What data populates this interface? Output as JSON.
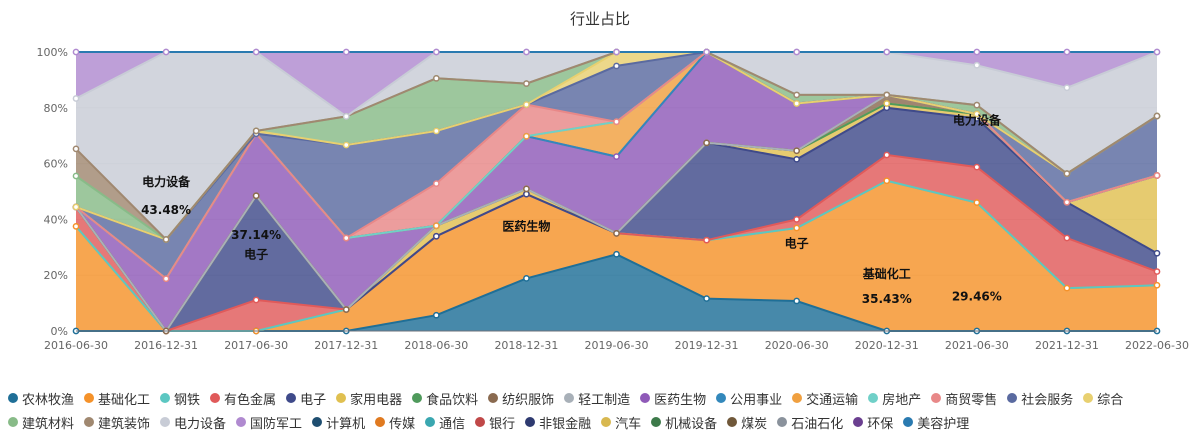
{
  "chart_data": {
    "type": "area",
    "stacked": true,
    "percent": true,
    "title": "行业占比",
    "x": [
      "2016-06-30",
      "2016-12-31",
      "2017-06-30",
      "2017-12-31",
      "2018-06-30",
      "2018-12-31",
      "2019-06-30",
      "2019-12-31",
      "2020-06-30",
      "2020-12-31",
      "2021-06-30",
      "2021-12-31",
      "2022-06-30"
    ],
    "yticks": [
      "0%",
      "20%",
      "40%",
      "60%",
      "80%",
      "100%"
    ],
    "ylim": [
      0,
      100
    ],
    "legend_position": "bottom",
    "series": [
      {
        "name": "农林牧渔",
        "color": "#1f6f97",
        "values": [
          0,
          0,
          0,
          0,
          3,
          10,
          11,
          5,
          7,
          0,
          0,
          0,
          0
        ]
      },
      {
        "name": "基础化工",
        "color": "#f5922a",
        "values": [
          27,
          0,
          0,
          3,
          15,
          16,
          3,
          9,
          17,
          35,
          29,
          6,
          10
        ]
      },
      {
        "name": "钢铁",
        "color": "#5cc7c2",
        "values": [
          0,
          0,
          0,
          0,
          0,
          0,
          0,
          0,
          0,
          0,
          0,
          0,
          0
        ]
      },
      {
        "name": "有色金属",
        "color": "#e05a5a",
        "values": [
          5,
          0,
          11,
          0,
          0,
          0,
          0,
          0,
          2,
          6,
          8,
          7,
          3
        ]
      },
      {
        "name": "电子",
        "color": "#3f4a8a",
        "values": [
          0,
          0,
          37,
          0,
          0,
          0,
          0,
          15,
          14,
          11,
          11,
          5,
          4
        ]
      },
      {
        "name": "家用电器",
        "color": "#e0c050",
        "values": [
          0,
          0,
          0,
          0,
          2,
          1,
          0,
          0,
          2,
          1,
          1,
          0,
          17
        ]
      },
      {
        "name": "食品饮料",
        "color": "#4f9a5c",
        "values": [
          0,
          0,
          0,
          0,
          0,
          0,
          0,
          0,
          0,
          0,
          0,
          0,
          0
        ]
      },
      {
        "name": "纺织服饰",
        "color": "#8a6a50",
        "values": [
          0,
          0,
          0,
          0,
          0,
          0,
          0,
          0,
          0,
          2,
          0,
          0,
          0
        ]
      },
      {
        "name": "轻工制造",
        "color": "#a8b0b8",
        "values": [
          0,
          0,
          0,
          0,
          0,
          0,
          0,
          0,
          0,
          0,
          0,
          0,
          0
        ]
      },
      {
        "name": "医药生物",
        "color": "#8f5ab8",
        "values": [
          0,
          12,
          22,
          10,
          0,
          10,
          11,
          14,
          11,
          0,
          0,
          0,
          0
        ]
      },
      {
        "name": "公用事业",
        "color": "#3388bb",
        "values": [
          0,
          0,
          0,
          0,
          0,
          0,
          0,
          0,
          0,
          0,
          0,
          0,
          0
        ]
      },
      {
        "name": "交通运输",
        "color": "#f0a040",
        "values": [
          0,
          0,
          0,
          0,
          0,
          0,
          5,
          0,
          0,
          0,
          0,
          0,
          0
        ]
      },
      {
        "name": "房地产",
        "color": "#70d0c8",
        "values": [
          0,
          0,
          0,
          0,
          0,
          0,
          0,
          0,
          0,
          0,
          0,
          0,
          0
        ]
      },
      {
        "name": "商贸零售",
        "color": "#e88888",
        "values": [
          0,
          0,
          0,
          0,
          8,
          6,
          0,
          0,
          0,
          0,
          0,
          0,
          0
        ]
      },
      {
        "name": "社会服务",
        "color": "#5a6aa0",
        "values": [
          0,
          9,
          0,
          13,
          10,
          0,
          8,
          0,
          0,
          0,
          0,
          4,
          13
        ]
      },
      {
        "name": "综合",
        "color": "#e8d070",
        "values": [
          0,
          0,
          1,
          0,
          0,
          0,
          2,
          0,
          0,
          0,
          0,
          0,
          0
        ]
      },
      {
        "name": "建筑材料",
        "color": "#88bb88",
        "values": [
          8,
          0,
          0,
          4,
          10,
          4,
          0,
          0,
          2,
          0,
          2,
          0,
          0
        ]
      },
      {
        "name": "建筑装饰",
        "color": "#a08870",
        "values": [
          7,
          0,
          0,
          0,
          0,
          0,
          0,
          0,
          0,
          0,
          0,
          0,
          0
        ]
      },
      {
        "name": "电力设备",
        "color": "#c8ccd6",
        "values": [
          13,
          43,
          28,
          0,
          5,
          6,
          0,
          0,
          10,
          10,
          9,
          12,
          14
        ]
      },
      {
        "name": "国防军工",
        "color": "#b08ad0",
        "values": [
          12,
          0,
          0,
          9,
          0,
          0,
          0,
          0,
          0,
          0,
          3,
          5,
          0
        ]
      },
      {
        "name": "计算机",
        "color": "#1e4e70",
        "values": [
          0,
          0,
          0,
          0,
          0,
          0,
          0,
          0,
          0,
          0,
          0,
          0,
          0
        ]
      },
      {
        "name": "传媒",
        "color": "#e07a20",
        "values": [
          0,
          0,
          0,
          0,
          0,
          0,
          0,
          0,
          0,
          0,
          0,
          0,
          0
        ]
      },
      {
        "name": "通信",
        "color": "#3aa7b0",
        "values": [
          0,
          0,
          0,
          0,
          0,
          0,
          0,
          0,
          0,
          0,
          0,
          0,
          0
        ]
      },
      {
        "name": "银行",
        "color": "#c04848",
        "values": [
          0,
          0,
          0,
          0,
          0,
          0,
          0,
          0,
          0,
          0,
          0,
          0,
          0
        ]
      },
      {
        "name": "非银金融",
        "color": "#2e3a70",
        "values": [
          0,
          0,
          0,
          0,
          0,
          0,
          0,
          0,
          0,
          0,
          0,
          0,
          0
        ]
      },
      {
        "name": "汽车",
        "color": "#d8b850",
        "values": [
          0,
          0,
          0,
          0,
          0,
          0,
          0,
          0,
          0,
          0,
          0,
          0,
          0
        ]
      },
      {
        "name": "机械设备",
        "color": "#3d7a4a",
        "values": [
          0,
          0,
          0,
          0,
          0,
          0,
          0,
          0,
          0,
          0,
          0,
          0,
          0
        ]
      },
      {
        "name": "煤炭",
        "color": "#70583a",
        "values": [
          0,
          0,
          0,
          0,
          0,
          0,
          0,
          0,
          0,
          0,
          0,
          0,
          0
        ]
      },
      {
        "name": "石油石化",
        "color": "#8a929c",
        "values": [
          0,
          0,
          0,
          0,
          0,
          0,
          0,
          0,
          0,
          0,
          0,
          0,
          0
        ]
      },
      {
        "name": "环保",
        "color": "#6b3f90",
        "values": [
          0,
          0,
          0,
          0,
          0,
          0,
          0,
          0,
          0,
          0,
          0,
          0,
          0
        ]
      },
      {
        "name": "美容护理",
        "color": "#2a7ab0",
        "values": [
          0,
          0,
          0,
          0,
          0,
          0,
          0,
          0,
          0,
          0,
          0,
          0,
          0
        ]
      }
    ],
    "annotations": [
      {
        "text": "电力设备",
        "xi": 1,
        "y": 52
      },
      {
        "text": "43.48%",
        "xi": 1,
        "y": 42
      },
      {
        "text": "37.14%",
        "xi": 2,
        "y": 33
      },
      {
        "text": "电子",
        "xi": 2,
        "y": 26
      },
      {
        "text": "医药生物",
        "xi": 5,
        "y": 36
      },
      {
        "text": "电子",
        "xi": 8,
        "y": 30
      },
      {
        "text": "基础化工",
        "xi": 9,
        "y": 19
      },
      {
        "text": "35.43%",
        "xi": 9,
        "y": 10
      },
      {
        "text": "29.46%",
        "xi": 10,
        "y": 11
      },
      {
        "text": "电力设备",
        "xi": 10,
        "y": 74
      }
    ]
  }
}
